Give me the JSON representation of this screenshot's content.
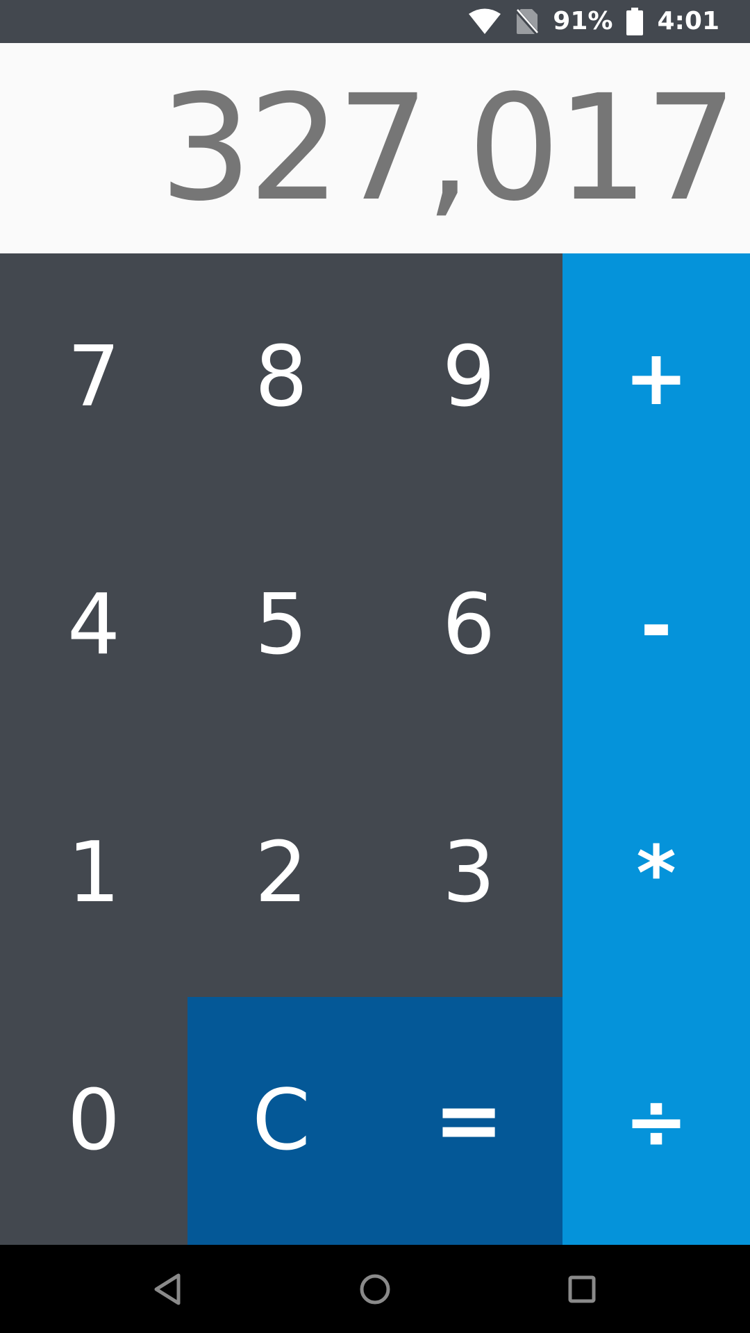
{
  "status_bar": {
    "battery_percent": "91%",
    "time": "4:01",
    "icons": [
      "wifi-icon",
      "no-sim-icon",
      "battery-icon"
    ]
  },
  "display": {
    "value": "327,017"
  },
  "keys": {
    "row1": [
      "7",
      "8",
      "9",
      "+"
    ],
    "row2": [
      "4",
      "5",
      "6",
      "-"
    ],
    "row3": [
      "1",
      "2",
      "3",
      "*"
    ],
    "row4": [
      "0",
      "C",
      "=",
      "÷"
    ]
  },
  "navigation": {
    "icons": [
      "back-icon",
      "home-icon",
      "recents-icon"
    ]
  },
  "colors": {
    "status_bar": "#43484f",
    "display_background": "#fafafa",
    "display_text": "#767676",
    "digit_keys": "#43484f",
    "operator_keys": "#0593da",
    "clear_equals_keys": "#045897",
    "nav_bar": "#000000"
  }
}
